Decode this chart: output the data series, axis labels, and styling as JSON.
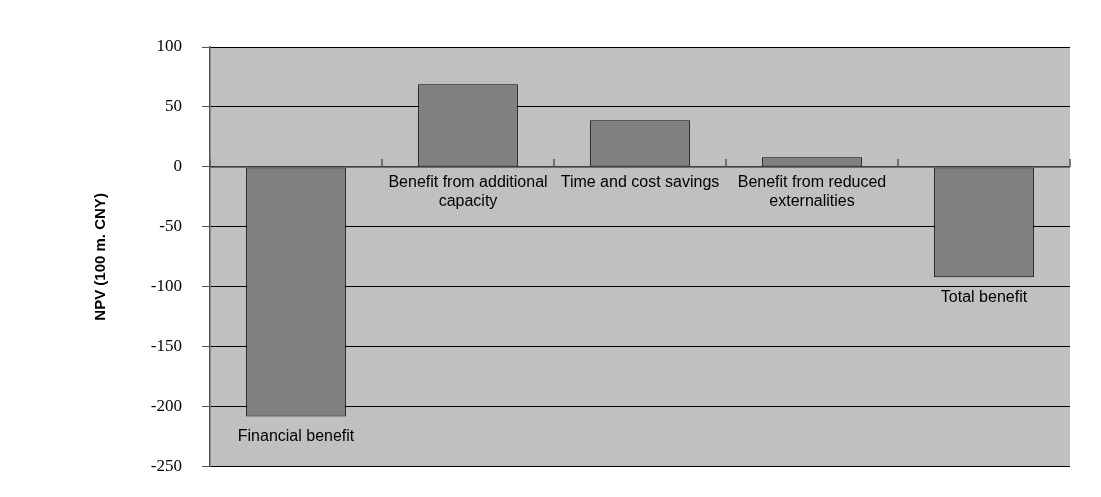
{
  "chart_data": {
    "type": "bar",
    "ylabel": "NPV (100 m. CNY)",
    "categories": [
      "Financial benefit",
      "Benefit from additional capacity",
      "Time and cost savings",
      "Benefit from reduced externalities",
      "Total benefit"
    ],
    "values": [
      -208,
      69,
      39,
      8,
      -92
    ],
    "color": "#808080",
    "ylim": [
      -250,
      100
    ],
    "yticks": [
      -250,
      -200,
      -150,
      -100,
      -50,
      0,
      50,
      100
    ],
    "grid": "y",
    "legend": false
  }
}
